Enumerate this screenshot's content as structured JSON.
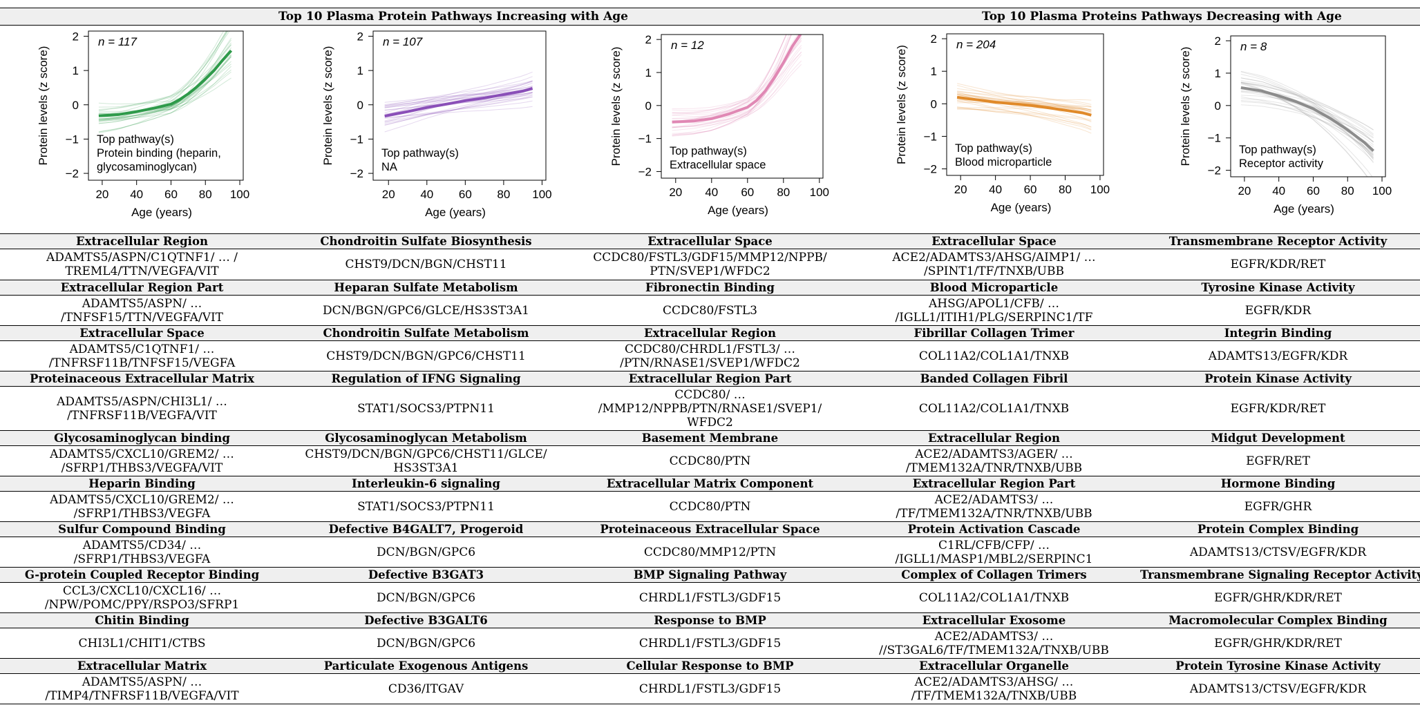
{
  "headers": {
    "increasing": "Top 10 Plasma Protein Pathways Increasing with Age",
    "decreasing": "Top 10 Plasma Proteins Pathways Decreasing with Age"
  },
  "chart_data": [
    {
      "type": "line",
      "n_label": "n = 117",
      "ylabel": "Protein levels (z score)",
      "xlabel": "Age (years)",
      "xlim": [
        12,
        102
      ],
      "ylim": [
        -2.2,
        2.15
      ],
      "xticks": [
        20,
        40,
        60,
        80,
        100
      ],
      "yticks": [
        -2,
        -1,
        0,
        1,
        2
      ],
      "annotation": [
        "Top pathway(s)",
        "Protein binding (heparin,",
        "glycosaminoglycan)"
      ],
      "color": "#2e9a4a",
      "series": [
        {
          "x": [
            18,
            25,
            30,
            40,
            50,
            60,
            65,
            70,
            75,
            80,
            85,
            90,
            95
          ],
          "y": [
            -0.32,
            -0.3,
            -0.28,
            -0.2,
            -0.1,
            0.02,
            0.15,
            0.32,
            0.52,
            0.75,
            1.0,
            1.3,
            1.58
          ]
        }
      ]
    },
    {
      "type": "line",
      "n_label": "n = 107",
      "ylabel": "Protein levels (z score)",
      "xlabel": "Age (years)",
      "xlim": [
        12,
        102
      ],
      "ylim": [
        -2.2,
        2.15
      ],
      "xticks": [
        20,
        40,
        60,
        80,
        100
      ],
      "yticks": [
        -2,
        -1,
        0,
        1,
        2
      ],
      "annotation": [
        "Top pathway(s)",
        "NA"
      ],
      "color": "#8a4fb8",
      "series": [
        {
          "x": [
            18,
            30,
            40,
            50,
            60,
            70,
            80,
            90,
            95
          ],
          "y": [
            -0.33,
            -0.2,
            -0.08,
            0.02,
            0.12,
            0.2,
            0.3,
            0.4,
            0.48
          ]
        }
      ]
    },
    {
      "type": "line",
      "n_label": "n = 12",
      "ylabel": "Protein levels (z score)",
      "xlabel": "Age (years)",
      "xlim": [
        12,
        102
      ],
      "ylim": [
        -2.2,
        2.15
      ],
      "xticks": [
        20,
        40,
        60,
        80,
        100
      ],
      "yticks": [
        -2,
        -1,
        0,
        1,
        2
      ],
      "annotation": [
        "Top pathway(s)",
        "Extracellular space"
      ],
      "color": "#e088b4",
      "series": [
        {
          "x": [
            18,
            30,
            40,
            50,
            60,
            65,
            70,
            75,
            80,
            85,
            90
          ],
          "y": [
            -0.5,
            -0.47,
            -0.4,
            -0.25,
            -0.05,
            0.15,
            0.45,
            0.85,
            1.3,
            1.8,
            2.2
          ]
        }
      ]
    },
    {
      "type": "line",
      "n_label": "n = 204",
      "ylabel": "Protein levels (z score)",
      "xlabel": "Age (years)",
      "xlim": [
        12,
        102
      ],
      "ylim": [
        -2.2,
        2.15
      ],
      "xticks": [
        20,
        40,
        60,
        80,
        100
      ],
      "yticks": [
        -2,
        -1,
        0,
        1,
        2
      ],
      "annotation": [
        "Top pathway(s)",
        "Blood microparticle"
      ],
      "color": "#e08a2a",
      "series": [
        {
          "x": [
            18,
            30,
            40,
            50,
            60,
            70,
            80,
            90,
            95
          ],
          "y": [
            0.2,
            0.12,
            0.05,
            0.0,
            -0.05,
            -0.12,
            -0.2,
            -0.28,
            -0.35
          ]
        }
      ]
    },
    {
      "type": "line",
      "n_label": "n = 8",
      "ylabel": "Protein levels (z score)",
      "xlabel": "Age (years)",
      "xlim": [
        12,
        102
      ],
      "ylim": [
        -2.2,
        2.15
      ],
      "xticks": [
        20,
        40,
        60,
        80,
        100
      ],
      "yticks": [
        -2,
        -1,
        0,
        1,
        2
      ],
      "annotation": [
        "Top pathway(s)",
        "Receptor activity"
      ],
      "color": "#8c8c8c",
      "series": [
        {
          "x": [
            18,
            30,
            40,
            50,
            60,
            70,
            80,
            90,
            95
          ],
          "y": [
            0.55,
            0.45,
            0.3,
            0.12,
            -0.1,
            -0.4,
            -0.75,
            -1.15,
            -1.4
          ]
        }
      ]
    }
  ],
  "table": {
    "columns": 5,
    "rows": [
      {
        "pathways": [
          "Extracellular Region",
          "Chondroitin Sulfate Biosynthesis",
          "Extracellular Space",
          "Extracellular Space",
          "Transmembrane Receptor Activity"
        ],
        "genes": [
          "ADAMTS5/ASPN/C1QTNF1/ … /\nTREML4/TTN/VEGFA/VIT",
          "CHST9/DCN/BGN/CHST11",
          "CCDC80/FSTL3/GDF15/MMP12/NPPB/\nPTN/SVEP1/WFDC2",
          "ACE2/ADAMTS3/AHSG/AIMP1/ …\n/SPINT1/TF/TNXB/UBB",
          "EGFR/KDR/RET"
        ],
        "h": 45
      },
      {
        "pathways": [
          "Extracellular Region Part",
          "Heparan Sulfate Metabolism",
          "Fibronectin Binding",
          "Blood Microparticle",
          "Tyrosine Kinase Activity"
        ],
        "genes": [
          "ADAMTS5/ASPN/ …\n/TNFSF15/TTN/VEGFA/VIT",
          "DCN/BGN/GPC6/GLCE/HS3ST3A1",
          "CCDC80/FSTL3",
          "AHSG/APOL1/CFB/ …\n/IGLL1/ITIH1/PLG/SERPINC1/TF",
          "EGFR/KDR"
        ],
        "h": 44
      },
      {
        "pathways": [
          "Extracellular Space",
          "Chondroitin Sulfate Metabolism",
          "Extracellular Region",
          "Fibrillar Collagen Trimer",
          "Integrin Binding"
        ],
        "genes": [
          "ADAMTS5/C1QTNF1/ …\n/TNFRSF11B/TNFSF15/VEGFA",
          "CHST9/DCN/BGN/GPC6/CHST11",
          "CCDC80/CHRDL1/FSTL3/ …\n/PTN/RNASE1/SVEP1/WFDC2",
          "COL11A2/COL1A1/TNXB",
          "ADAMTS13/EGFR/KDR"
        ],
        "h": 44
      },
      {
        "pathways": [
          "Proteinaceous Extracellular Matrix",
          "Regulation of IFNG Signaling",
          "Extracellular Region Part",
          "Banded Collagen Fibril",
          "Protein Kinase Activity"
        ],
        "genes": [
          "ADAMTS5/ASPN/CHI3L1/ …\n/TNFRSF11B/VEGFA/VIT",
          "STAT1/SOCS3/PTPN11",
          "CCDC80/ …\n/MMP12/NPPB/PTN/RNASE1/SVEP1/\nWFDC2",
          "COL11A2/COL1A1/TNXB",
          "EGFR/KDR/RET"
        ],
        "h": 64
      },
      {
        "pathways": [
          "Glycosaminoglycan binding",
          "Glycosaminoglycan Metabolism",
          "Basement Membrane",
          "Extracellular Region",
          "Midgut Development"
        ],
        "genes": [
          "ADAMTS5/CXCL10/GREM2/ …\n/SFRP1/THBS3/VEGFA/VIT",
          "CHST9/DCN/BGN/GPC6/CHST11/GLCE/\nHS3ST3A1",
          "CCDC80/PTN",
          "ACE2/ADAMTS3/AGER/ …\n/TMEM132A/TNR/TNXB/UBB",
          "EGFR/RET"
        ],
        "h": 44
      },
      {
        "pathways": [
          "Heparin Binding",
          "Interleukin-6 signaling",
          "Extracellular Matrix Component",
          "Extracellular Region Part",
          "Hormone Binding"
        ],
        "genes": [
          "ADAMTS5/CXCL10/GREM2/ …\n/SFRP1/THBS3/VEGFA",
          "STAT1/SOCS3/PTPN11",
          "CCDC80/PTN",
          "ACE2/ADAMTS3/ …\n/TF/TMEM132A/TNR/TNXB/UBB",
          "EGFR/GHR"
        ],
        "h": 44
      },
      {
        "pathways": [
          "Sulfur Compound Binding",
          "Defective B4GALT7, Progeroid",
          "Proteinaceous Extracellular Space",
          "Protein Activation Cascade",
          "Protein Complex Binding"
        ],
        "genes": [
          "ADAMTS5/CD34/ …\n/SFRP1/THBS3/VEGFA",
          "DCN/BGN/GPC6",
          "CCDC80/MMP12/PTN",
          "C1RL/CFB/CFP/ …\n/IGLL1/MASP1/MBL2/SERPINC1",
          "ADAMTS13/CTSV/EGFR/KDR"
        ],
        "h": 44
      },
      {
        "pathways": [
          "G-protein Coupled Receptor Binding",
          "Defective B3GAT3",
          "BMP Signaling Pathway",
          "Complex of Collagen Trimers",
          "Transmembrane Signaling Receptor Activity"
        ],
        "genes": [
          "CCL3/CXCL10/CXCL16/ …\n/NPW/POMC/PPY/RSPO3/SFRP1",
          "DCN/BGN/GPC6",
          "CHRDL1/FSTL3/GDF15",
          "COL11A2/COL1A1/TNXB",
          "EGFR/GHR/KDR/RET"
        ],
        "h": 44
      },
      {
        "pathways": [
          "Chitin Binding",
          "Defective B3GALT6",
          "Response to BMP",
          "Extracellular Exosome",
          "Macromolecular Complex Binding"
        ],
        "genes": [
          "CHI3L1/CHIT1/CTBS",
          "DCN/BGN/GPC6",
          "CHRDL1/FSTL3/GDF15",
          "ACE2/ADAMTS3/ …\n//ST3GAL6/TF/TMEM132A/TNXB/UBB",
          "EGFR/GHR/KDR/RET"
        ],
        "h": 44
      },
      {
        "pathways": [
          "Extracellular Matrix",
          "Particulate Exogenous Antigens",
          "Cellular Response to BMP",
          "Extracellular Organelle",
          "Protein Tyrosine Kinase Activity"
        ],
        "genes": [
          "ADAMTS5/ASPN/ …\n/TIMP4/TNFRSF11B/VEGFA/VIT",
          "CD36/ITGAV",
          "CHRDL1/FSTL3/GDF15",
          "ACE2/ADAMTS3/AHSG/ …\n/TF/TMEM132A/TNXB/UBB",
          "ADAMTS13/CTSV/EGFR/KDR"
        ],
        "h": 44
      }
    ]
  }
}
